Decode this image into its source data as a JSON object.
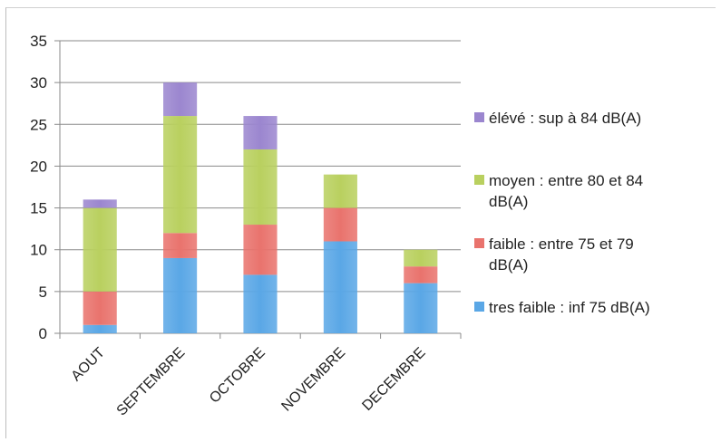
{
  "chart_data": {
    "type": "bar",
    "stacked": true,
    "categories": [
      "AOUT",
      "SEPTEMBRE",
      "OCTOBRE",
      "NOVEMBRE",
      "DECEMBRE"
    ],
    "series": [
      {
        "name": "tres faible : inf 75 dB(A)",
        "values": [
          1,
          9,
          7,
          11,
          6
        ],
        "color": "#5aa7e6"
      },
      {
        "name": "faible : entre 75 et 79 dB(A)",
        "values": [
          4,
          3,
          6,
          4,
          2
        ],
        "color": "#e9736d"
      },
      {
        "name": "moyen : entre 80 et 84 dB(A)",
        "values": [
          10,
          14,
          9,
          4,
          2
        ],
        "color": "#b9d05f"
      },
      {
        "name": "élévé : sup à 84 dB(A)",
        "values": [
          1,
          4,
          4,
          0,
          0
        ],
        "color": "#9b86cf"
      }
    ],
    "legend_order": [
      3,
      2,
      1,
      0
    ],
    "legend_lines": [
      [
        "élévé : sup à 84 dB(A)"
      ],
      [
        "moyen : entre 80 et 84",
        "dB(A)"
      ],
      [
        "faible : entre 75 et 79",
        "dB(A)"
      ],
      [
        "tres faible : inf 75 dB(A)"
      ]
    ],
    "title": "",
    "xlabel": "",
    "ylabel": "",
    "ylim": [
      0,
      35
    ],
    "yticks": [
      0,
      5,
      10,
      15,
      20,
      25,
      30,
      35
    ],
    "grid": true,
    "legend_position": "right"
  }
}
